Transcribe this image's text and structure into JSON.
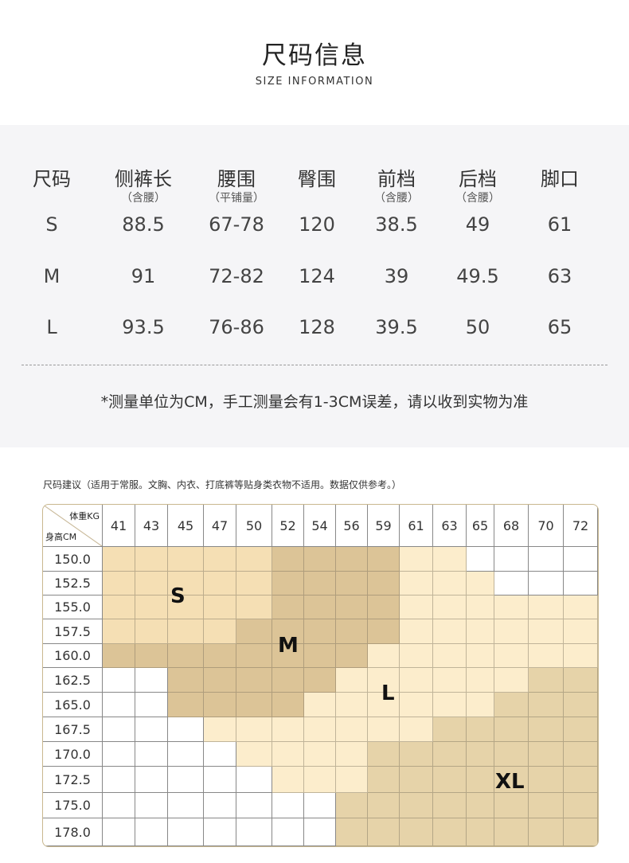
{
  "header": {
    "title": "尺码信息",
    "subtitle": "SIZE INFORMATION"
  },
  "size_table": {
    "columns": [
      {
        "label": "尺码",
        "note": ""
      },
      {
        "label": "侧裤长",
        "note": "（含腰）"
      },
      {
        "label": "腰围",
        "note": "（平铺量）"
      },
      {
        "label": "臀围",
        "note": ""
      },
      {
        "label": "前档",
        "note": "（含腰）"
      },
      {
        "label": "后档",
        "note": "（含腰）"
      },
      {
        "label": "脚口",
        "note": ""
      }
    ],
    "rows": [
      [
        "S",
        "88.5",
        "67-78",
        "120",
        "38.5",
        "49",
        "61"
      ],
      [
        "M",
        "91",
        "72-82",
        "124",
        "39",
        "49.5",
        "63"
      ],
      [
        "L",
        "93.5",
        "76-86",
        "128",
        "39.5",
        "50",
        "65"
      ]
    ],
    "note": "*测量单位为CM，手工测量会有1-3CM误差，请以收到实物为准"
  },
  "recommendation": {
    "caption": "尺码建议（适用于常服。文胸、内衣、打底裤等贴身类衣物不适用。数据仅供参考。）",
    "corner_weight": "体重KG",
    "corner_height": "身高CM",
    "weights": [
      "41",
      "43",
      "45",
      "47",
      "50",
      "52",
      "54",
      "56",
      "59",
      "61",
      "63",
      "65",
      "68",
      "70",
      "72"
    ],
    "heights": [
      "150.0",
      "152.5",
      "155.0",
      "157.5",
      "160.0",
      "162.5",
      "165.0",
      "167.5",
      "170.0",
      "172.5",
      "175.0",
      "178.0"
    ],
    "size_map": [
      "SSSSSMMMMLL----",
      "SSSSSMMMMLLL---",
      "SSSSSMMMMLLLLLL",
      "SSSSMMMMMLLLLLL",
      "MMMMMMMMLLLLLLL",
      "--MMMMMLLLLLLXX",
      "--MMMMLLLLLLXXX",
      "---LLLLLLLXXXXX",
      "----LLLLXXXXXXX",
      "-----LLLXXXXXXX",
      "-------XXXXXXXX",
      "-------XXXXXXXX"
    ],
    "size_labels": {
      "S": "S",
      "M": "M",
      "L": "L",
      "X": "XL"
    },
    "colors": {
      "S": "#f5dfb4",
      "M": "#dcc497",
      "L": "#fcedcc",
      "X": "#e6d3a9",
      "-": "#ffffff"
    }
  }
}
